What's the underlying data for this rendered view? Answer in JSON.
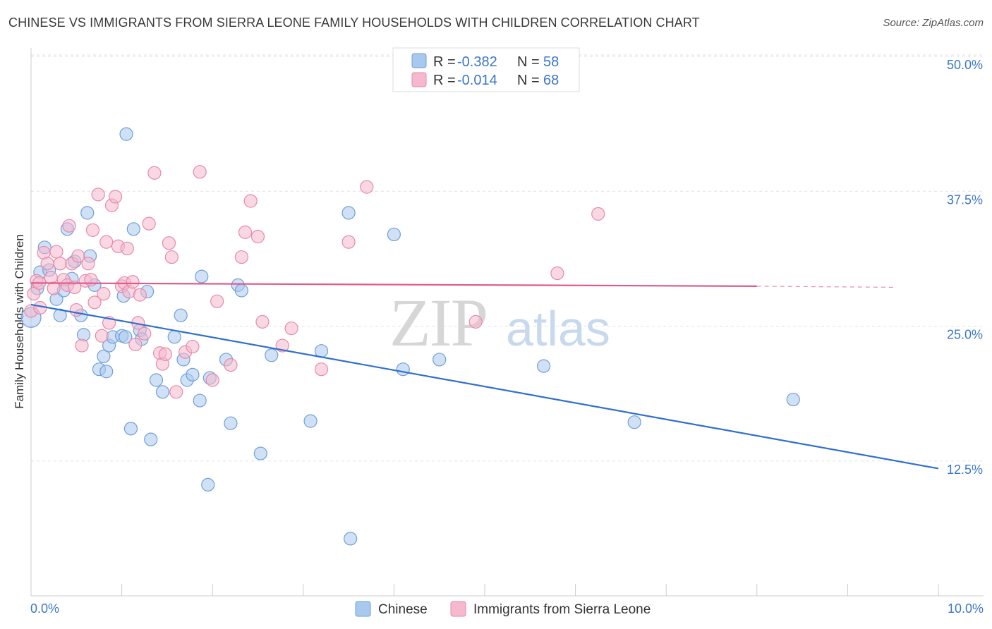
{
  "chart_data": {
    "type": "scatter",
    "title": "CHINESE VS IMMIGRANTS FROM SIERRA LEONE FAMILY HOUSEHOLDS WITH CHILDREN CORRELATION CHART",
    "source": "Source: ZipAtlas.com",
    "xlabel": "",
    "ylabel": "Family Households with Children",
    "xlim": [
      0,
      10
    ],
    "ylim": [
      0,
      52.5
    ],
    "x_tick_labels": {
      "min": "0.0%",
      "max": "10.0%"
    },
    "y_ticks": [
      {
        "value": 12.5,
        "label": "12.5%"
      },
      {
        "value": 25.0,
        "label": "25.0%"
      },
      {
        "value": 37.5,
        "label": "37.5%"
      },
      {
        "value": 50.0,
        "label": "50.0%"
      }
    ],
    "watermark": {
      "zip": "ZIP",
      "atlas": "atlas"
    },
    "legend": [
      {
        "r_label": "R =",
        "r_value": "-0.382",
        "n_label": "N =",
        "n_value": "58"
      },
      {
        "r_label": "R =",
        "r_value": "-0.014",
        "n_label": "N =",
        "n_value": "68"
      }
    ],
    "series": [
      {
        "name": "Chinese",
        "color": "#a9c8ee",
        "stroke": "#6f9fd8",
        "line_color": "#2f6fcf",
        "trend": {
          "x0": 0,
          "y0": 27.0,
          "x1": 10,
          "y1": 11.8
        },
        "points": [
          [
            0.0,
            25.8
          ],
          [
            0.07,
            28.5
          ],
          [
            0.1,
            30.0
          ],
          [
            0.15,
            32.3
          ],
          [
            0.2,
            30.2
          ],
          [
            0.28,
            27.5
          ],
          [
            0.32,
            26.0
          ],
          [
            0.36,
            28.3
          ],
          [
            0.4,
            34.0
          ],
          [
            0.45,
            29.4
          ],
          [
            0.48,
            31.0
          ],
          [
            0.55,
            26.0
          ],
          [
            0.58,
            24.2
          ],
          [
            0.62,
            35.5
          ],
          [
            0.65,
            31.5
          ],
          [
            0.7,
            28.8
          ],
          [
            0.75,
            21.0
          ],
          [
            0.8,
            22.2
          ],
          [
            0.83,
            20.8
          ],
          [
            0.86,
            23.2
          ],
          [
            0.9,
            24.0
          ],
          [
            1.0,
            24.1
          ],
          [
            1.02,
            27.8
          ],
          [
            1.05,
            42.8
          ],
          [
            1.1,
            15.5
          ],
          [
            1.13,
            34.0
          ],
          [
            1.2,
            24.6
          ],
          [
            1.22,
            23.8
          ],
          [
            1.28,
            28.2
          ],
          [
            1.32,
            14.5
          ],
          [
            1.38,
            20.0
          ],
          [
            1.45,
            18.9
          ],
          [
            1.58,
            24.0
          ],
          [
            1.65,
            26.0
          ],
          [
            1.68,
            21.9
          ],
          [
            1.72,
            20.0
          ],
          [
            1.78,
            20.5
          ],
          [
            1.86,
            18.1
          ],
          [
            1.88,
            29.6
          ],
          [
            1.95,
            10.3
          ],
          [
            1.97,
            20.2
          ],
          [
            2.15,
            21.9
          ],
          [
            2.2,
            16.0
          ],
          [
            2.28,
            28.8
          ],
          [
            2.32,
            28.3
          ],
          [
            2.53,
            13.2
          ],
          [
            2.65,
            22.3
          ],
          [
            3.08,
            16.2
          ],
          [
            3.2,
            22.7
          ],
          [
            3.5,
            35.5
          ],
          [
            3.52,
            5.3
          ],
          [
            4.0,
            33.5
          ],
          [
            4.1,
            21.0
          ],
          [
            4.5,
            21.9
          ],
          [
            5.65,
            21.3
          ],
          [
            6.65,
            16.1
          ],
          [
            8.4,
            18.2
          ],
          [
            1.04,
            24.0
          ]
        ]
      },
      {
        "name": "Immigrants from Sierra Leone",
        "color": "#f5b8cc",
        "stroke": "#e68aa8",
        "line_color": "#e05a8a",
        "trend": {
          "x0": 0,
          "y0": 29.0,
          "x1": 8.0,
          "y1": 28.7
        },
        "trend_dash_end": {
          "x": 9.5,
          "y": 28.6
        },
        "points": [
          [
            0.0,
            26.4
          ],
          [
            0.03,
            28.0
          ],
          [
            0.06,
            29.2
          ],
          [
            0.1,
            26.7
          ],
          [
            0.14,
            31.8
          ],
          [
            0.18,
            30.8
          ],
          [
            0.22,
            29.5
          ],
          [
            0.25,
            28.5
          ],
          [
            0.28,
            31.9
          ],
          [
            0.32,
            30.8
          ],
          [
            0.36,
            29.3
          ],
          [
            0.4,
            28.8
          ],
          [
            0.42,
            34.3
          ],
          [
            0.45,
            30.8
          ],
          [
            0.48,
            28.6
          ],
          [
            0.52,
            31.5
          ],
          [
            0.56,
            23.2
          ],
          [
            0.6,
            29.2
          ],
          [
            0.63,
            30.8
          ],
          [
            0.66,
            29.3
          ],
          [
            0.68,
            33.9
          ],
          [
            0.7,
            27.2
          ],
          [
            0.74,
            37.2
          ],
          [
            0.78,
            24.1
          ],
          [
            0.8,
            28.0
          ],
          [
            0.83,
            32.8
          ],
          [
            0.86,
            25.3
          ],
          [
            0.89,
            36.2
          ],
          [
            0.93,
            37.0
          ],
          [
            0.96,
            32.4
          ],
          [
            1.0,
            28.7
          ],
          [
            1.03,
            29.0
          ],
          [
            1.06,
            32.2
          ],
          [
            1.08,
            28.2
          ],
          [
            1.12,
            29.1
          ],
          [
            1.15,
            23.3
          ],
          [
            1.18,
            25.3
          ],
          [
            1.2,
            27.9
          ],
          [
            1.25,
            24.3
          ],
          [
            1.3,
            34.5
          ],
          [
            1.36,
            39.2
          ],
          [
            1.42,
            22.5
          ],
          [
            1.45,
            21.5
          ],
          [
            1.48,
            22.4
          ],
          [
            1.52,
            32.7
          ],
          [
            1.55,
            31.4
          ],
          [
            1.6,
            18.9
          ],
          [
            1.7,
            22.6
          ],
          [
            1.78,
            23.1
          ],
          [
            1.86,
            39.3
          ],
          [
            2.0,
            20.0
          ],
          [
            2.05,
            27.3
          ],
          [
            2.2,
            21.4
          ],
          [
            2.32,
            31.4
          ],
          [
            2.36,
            33.7
          ],
          [
            2.42,
            36.6
          ],
          [
            2.5,
            33.3
          ],
          [
            2.55,
            25.4
          ],
          [
            2.77,
            23.2
          ],
          [
            2.87,
            24.8
          ],
          [
            3.2,
            21.0
          ],
          [
            3.5,
            32.8
          ],
          [
            3.7,
            37.9
          ],
          [
            4.9,
            25.4
          ],
          [
            5.8,
            29.9
          ],
          [
            6.25,
            35.4
          ],
          [
            0.09,
            29.0
          ],
          [
            0.5,
            26.5
          ]
        ]
      }
    ]
  }
}
